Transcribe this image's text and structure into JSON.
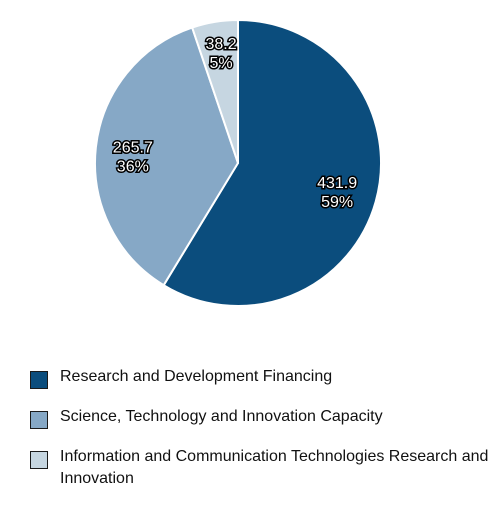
{
  "chart_data": {
    "type": "pie",
    "title": "",
    "legend_position": "bottom",
    "slices": [
      {
        "name": "Research and Development Financing",
        "value": 431.9,
        "percent_label": "59%",
        "color": "#0b4d7d",
        "label_color": "#ffffff"
      },
      {
        "name": "Science, Technology and Innovation Capacity",
        "value": 265.7,
        "percent_label": "36%",
        "color": "#86a8c6",
        "label_color": "#ffffff"
      },
      {
        "name": "Information and Communication Technologies Research and Innovation",
        "value": 38.2,
        "percent_label": "5%",
        "color": "#c6d6e1",
        "label_color": "#ffffff"
      }
    ]
  }
}
